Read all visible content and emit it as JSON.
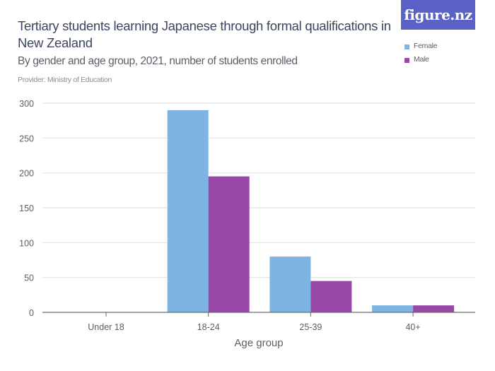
{
  "header": {
    "title": "Tertiary students learning Japanese through formal qualifications in New Zealand",
    "subtitle": "By gender and age group, 2021, number of students enrolled",
    "provider": "Provider: Ministry of Education"
  },
  "logo": {
    "text": "figure.nz",
    "color": "#5b62c7"
  },
  "legend": {
    "items": [
      {
        "label": "Female",
        "color": "#7db4e2"
      },
      {
        "label": "Male",
        "color": "#9849a8"
      }
    ]
  },
  "chart_data": {
    "type": "bar",
    "title": "Tertiary students learning Japanese through formal qualifications in New Zealand",
    "subtitle": "By gender and age group, 2021, number of students enrolled",
    "xlabel": "Age group",
    "ylabel": "",
    "categories": [
      "Under 18",
      "18-24",
      "25-39",
      "40+"
    ],
    "series": [
      {
        "name": "Female",
        "color": "#7db4e2",
        "values": [
          0,
          290,
          80,
          10
        ]
      },
      {
        "name": "Male",
        "color": "#9849a8",
        "values": [
          0,
          195,
          45,
          10
        ]
      }
    ],
    "ylim": [
      0,
      300
    ],
    "yticks": [
      0,
      50,
      100,
      150,
      200,
      250,
      300
    ],
    "grid": true,
    "legend_position": "top-right"
  }
}
